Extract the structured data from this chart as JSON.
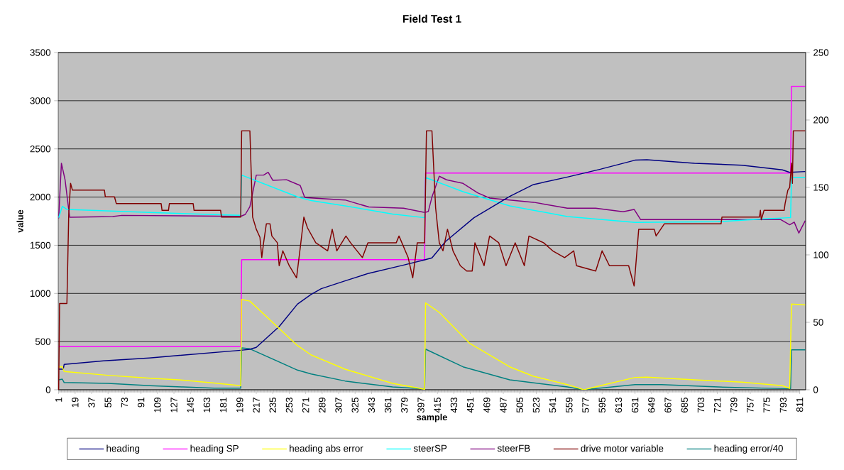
{
  "chart_data": {
    "type": "line",
    "title": "Field Test 1",
    "xlabel": "sample",
    "ylabel": "value",
    "xlim": [
      0.5,
      817.5
    ],
    "xticks": [
      1,
      19,
      37,
      55,
      73,
      91,
      109,
      127,
      145,
      163,
      181,
      199,
      217,
      235,
      253,
      271,
      289,
      307,
      325,
      343,
      361,
      379,
      397,
      415,
      433,
      451,
      469,
      487,
      505,
      523,
      541,
      559,
      577,
      595,
      613,
      631,
      649,
      667,
      685,
      703,
      721,
      739,
      757,
      775,
      793,
      811
    ],
    "ylim": [
      0,
      3500
    ],
    "yticks": [
      0,
      500,
      1000,
      1500,
      2000,
      2500,
      3000,
      3500
    ],
    "y2lim": [
      0,
      250
    ],
    "y2ticks": [
      0,
      50,
      100,
      150,
      200,
      250
    ],
    "grid": "y",
    "legend": "bottom",
    "marker": "none",
    "line_style": "solid",
    "series": [
      {
        "name": "heading",
        "color": "#000080",
        "x": [
          1,
          6,
          7,
          50,
          100,
          150,
          200,
          210,
          217,
          242,
          262,
          277,
          288,
          314,
          340,
          378,
          401,
          409,
          424,
          455,
          494,
          520,
          557,
          593,
          631,
          644,
          696,
          748,
          792,
          800,
          817
        ],
        "values": [
          214,
          214,
          263,
          300,
          330,
          370,
          410,
          420,
          440,
          656,
          889,
          990,
          1049,
          1130,
          1209,
          1294,
          1349,
          1369,
          1540,
          1786,
          2007,
          2130,
          2208,
          2289,
          2383,
          2388,
          2351,
          2331,
          2282,
          2257,
          2265
        ]
      },
      {
        "name": "heading SP",
        "color": "#ff00ff",
        "x": [
          1,
          200,
          201,
          401,
          402,
          801,
          802,
          817
        ],
        "values": [
          450,
          450,
          1350,
          1350,
          2250,
          2250,
          3150,
          3150
        ]
      },
      {
        "name": "heading abs error",
        "color": "#ffff00",
        "x": [
          1,
          5,
          7,
          55,
          101,
          137,
          171,
          200,
          201,
          210,
          262,
          277,
          314,
          366,
          401,
          402,
          417,
          450,
          494,
          520,
          557,
          575,
          593,
          631,
          644,
          696,
          748,
          792,
          800,
          802,
          817
        ],
        "values": [
          238,
          240,
          189,
          150,
          120,
          100,
          70,
          42,
          938,
          920,
          459,
          361,
          214,
          66,
          5,
          901,
          803,
          484,
          238,
          140,
          54,
          0,
          42,
          128,
          130,
          103,
          79,
          42,
          15,
          890,
          880
        ]
      },
      {
        "name": "steerSP",
        "color": "#00ffff",
        "x": [
          1,
          5,
          10,
          101,
          171,
          200,
          201,
          262,
          277,
          314,
          366,
          401,
          402,
          443,
          494,
          557,
          631,
          722,
          773,
          799,
          801,
          802,
          817
        ],
        "values": [
          1786,
          1904,
          1872,
          1840,
          1818,
          1811,
          2228,
          2002,
          1963,
          1909,
          1823,
          1786,
          2203,
          2056,
          1909,
          1798,
          1737,
          1745,
          1774,
          1786,
          1786,
          2203,
          2203
        ]
      },
      {
        "name": "steerFB",
        "color": "#800080",
        "x": [
          1,
          4,
          8,
          13,
          60,
          70,
          200,
          205,
          210,
          217,
          225,
          230,
          235,
          250,
          265,
          270,
          314,
          340,
          378,
          401,
          405,
          409,
          417,
          425,
          443,
          459,
          472,
          520,
          557,
          588,
          618,
          630,
          637,
          790,
          800,
          805,
          810,
          817
        ],
        "values": [
          1780,
          2351,
          2179,
          1791,
          1798,
          1810,
          1800,
          1820,
          1900,
          2228,
          2228,
          2257,
          2174,
          2180,
          2120,
          1995,
          1970,
          1897,
          1885,
          1840,
          1850,
          2000,
          2216,
          2179,
          2142,
          2044,
          1990,
          1946,
          1885,
          1885,
          1848,
          1872,
          1767,
          1767,
          1713,
          1740,
          1626,
          1755
        ]
      },
      {
        "name": "drive motor variable",
        "color": "#800000",
        "axis": "y2",
        "x": [
          1,
          2,
          10,
          12,
          14,
          16,
          51,
          52,
          62,
          64,
          113,
          114,
          121,
          122,
          148,
          149,
          178,
          179,
          200,
          201,
          210,
          213,
          217,
          221,
          223,
          225,
          228,
          232,
          234,
          240,
          242,
          246,
          253,
          261,
          265,
          269,
          273,
          282,
          295,
          300,
          305,
          315,
          320,
          333,
          339,
          370,
          373,
          383,
          388,
          393,
          401,
          403,
          409,
          413,
          417,
          421,
          426,
          432,
          440,
          447,
          453,
          456,
          466,
          472,
          482,
          490,
          500,
          510,
          515,
          531,
          541,
          554,
          564,
          567,
          588,
          595,
          603,
          624,
          630,
          635,
          652,
          654,
          663,
          725,
          726,
          767,
          768,
          769,
          772,
          794,
          795,
          798,
          800,
          802,
          803,
          804,
          817
        ],
        "values": [
          0,
          64,
          64,
          130,
          153,
          148,
          148,
          143,
          143,
          138,
          138,
          133,
          133,
          138,
          138,
          133,
          133,
          128,
          128,
          192,
          192,
          128,
          119,
          113,
          98,
          109,
          123,
          123,
          114,
          109,
          92,
          103,
          92,
          83,
          105,
          128,
          120,
          109,
          103,
          119,
          103,
          114,
          109,
          98,
          109,
          109,
          114,
          98,
          83,
          109,
          109,
          192,
          192,
          135,
          109,
          103,
          119,
          103,
          92,
          88,
          88,
          109,
          92,
          114,
          109,
          92,
          109,
          92,
          114,
          109,
          103,
          98,
          103,
          92,
          88,
          103,
          92,
          92,
          77,
          119,
          119,
          114,
          123,
          123,
          128,
          128,
          133,
          126,
          133,
          133,
          138,
          148,
          150,
          168,
          153,
          192,
          192
        ]
      },
      {
        "name": "heading error/40",
        "color": "#008080",
        "x": [
          1,
          5,
          7,
          55,
          101,
          137,
          171,
          200,
          201,
          210,
          262,
          277,
          314,
          366,
          401,
          402,
          443,
          494,
          557,
          575,
          631,
          660,
          722,
          792,
          801,
          802,
          817
        ],
        "values": [
          103,
          110,
          75,
          66,
          42,
          29,
          17,
          17,
          435,
          425,
          204,
          164,
          91,
          29,
          10,
          422,
          238,
          103,
          29,
          0,
          54,
          54,
          29,
          12,
          12,
          415,
          415
        ]
      }
    ]
  }
}
